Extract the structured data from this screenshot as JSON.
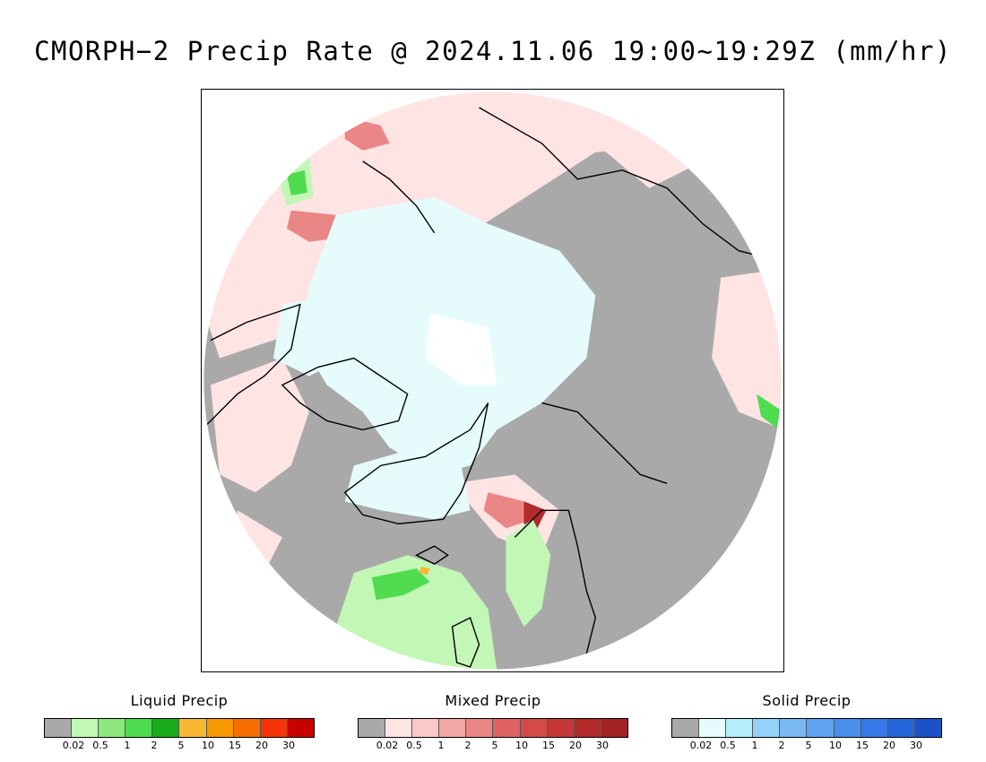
{
  "title": "CMORPH−2 Precip Rate @ 2024.11.06 19:00~19:29Z (mm/hr)",
  "colors": {
    "no_precip": "#a9a9a9",
    "frame": "#000000",
    "background": "#ffffff"
  },
  "map": {
    "projection": "north-polar-stereographic",
    "coastline_color": "#000000",
    "regions": [
      {
        "name": "north-atlantic-rain",
        "category": "liquid"
      },
      {
        "name": "scandinavia-rain",
        "category": "liquid"
      },
      {
        "name": "greenland-snow",
        "category": "solid"
      },
      {
        "name": "arctic-ocean-snow",
        "category": "solid"
      },
      {
        "name": "canada-mixed",
        "category": "mixed"
      },
      {
        "name": "siberia-mixed",
        "category": "mixed"
      }
    ]
  },
  "legends": [
    {
      "id": "liquid",
      "title": "Liquid Precip",
      "colors": [
        "#a9a9a9",
        "#c2f7b6",
        "#8ee87e",
        "#4fdc4f",
        "#1aab1a",
        "#f7b733",
        "#f79a00",
        "#f76e00",
        "#f7330a",
        "#c80000"
      ],
      "ticks": [
        "0.02",
        "0.5",
        "1",
        "2",
        "5",
        "10",
        "15",
        "20",
        "30"
      ]
    },
    {
      "id": "mixed",
      "title": "Mixed Precip",
      "colors": [
        "#a9a9a9",
        "#ffe4e4",
        "#fbc8c8",
        "#f3a6a6",
        "#ea8686",
        "#e06262",
        "#d44a4a",
        "#c43838",
        "#b32a2a",
        "#a32222"
      ],
      "ticks": [
        "0.02",
        "0.5",
        "1",
        "2",
        "5",
        "10",
        "15",
        "20",
        "30"
      ]
    },
    {
      "id": "solid",
      "title": "Solid Precip",
      "colors": [
        "#a9a9a9",
        "#e6fcfc",
        "#b4effa",
        "#94d2fa",
        "#7ab8f5",
        "#5ea3f1",
        "#4890ec",
        "#3479e6",
        "#2466da",
        "#1a52c8"
      ],
      "ticks": [
        "0.02",
        "0.5",
        "1",
        "2",
        "5",
        "10",
        "15",
        "20",
        "30"
      ]
    }
  ]
}
